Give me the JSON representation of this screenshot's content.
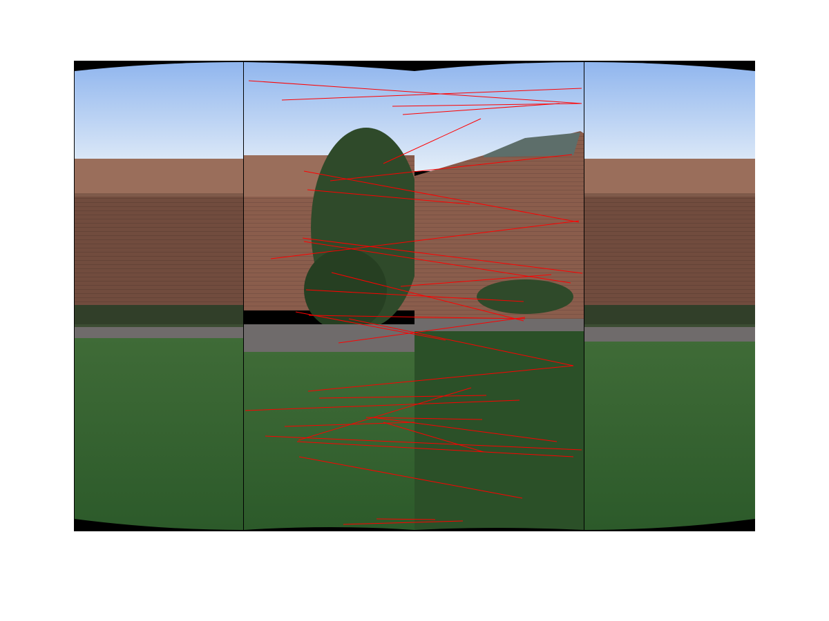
{
  "figure": {
    "kind": "panorama-feature-matches",
    "panel_count": 4,
    "background": "#ffffff",
    "colors": {
      "sky_top": "#8fb5ee",
      "sky_bottom": "#dde9f7",
      "brick": "#8a5d4c",
      "brick_dark": "#6d4a3e",
      "window": "#d9dfe6",
      "roof": "#5d6e6a",
      "tree": "#2f4a2a",
      "path": "#6f6b6b",
      "grass": "#3d6a35",
      "grass_dark": "#2b5028",
      "match_line": "#ff0000",
      "divider": "#000000",
      "border_black": "#000000"
    },
    "match_count": 34
  }
}
